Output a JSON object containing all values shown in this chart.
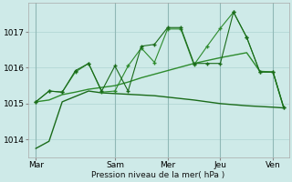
{
  "bg_color": "#ceeae8",
  "grid_color": "#aed4d2",
  "line_dark": "#1a6b1a",
  "line_mid": "#2d8b2d",
  "xlabel": "Pression niveau de la mer( hPa )",
  "ylim": [
    1013.5,
    1017.8
  ],
  "xlim": [
    -0.3,
    9.6
  ],
  "xtick_labels": [
    "Mar",
    "Sam",
    "Mer",
    "Jeu",
    "Ven"
  ],
  "xtick_positions": [
    0,
    3,
    5,
    7,
    9
  ],
  "ytick_vals": [
    1014,
    1015,
    1016,
    1017
  ],
  "s1_x": [
    0,
    0.5,
    1.0,
    1.5,
    2.0,
    2.5,
    3.0,
    3.5,
    4.0,
    4.5,
    5.0,
    5.5,
    6.0,
    6.5,
    7.0,
    7.5,
    8.0,
    8.5,
    9.0,
    9.4
  ],
  "s1_y": [
    1013.75,
    1013.95,
    1015.05,
    1015.2,
    1015.35,
    1015.3,
    1015.28,
    1015.26,
    1015.24,
    1015.22,
    1015.18,
    1015.14,
    1015.1,
    1015.05,
    1015.0,
    1014.97,
    1014.94,
    1014.92,
    1014.9,
    1014.88
  ],
  "s2_x": [
    0,
    0.5,
    1.0,
    1.5,
    2.0,
    2.5,
    3.0,
    3.5,
    4.0,
    4.5,
    5.0,
    5.5,
    6.0,
    6.5,
    7.0,
    7.5,
    8.0,
    8.5,
    9.0,
    9.4
  ],
  "s2_y": [
    1015.05,
    1015.1,
    1015.25,
    1015.32,
    1015.4,
    1015.45,
    1015.5,
    1015.6,
    1015.72,
    1015.82,
    1015.92,
    1016.02,
    1016.12,
    1016.2,
    1016.28,
    1016.35,
    1016.42,
    1015.9,
    1015.88,
    1014.9
  ],
  "s3_x": [
    0,
    0.5,
    1.0,
    1.5,
    2.0,
    2.5,
    3.0,
    3.5,
    4.0,
    4.5,
    5.0,
    5.5,
    6.0,
    6.5,
    7.0,
    7.5,
    8.0,
    8.5,
    9.0,
    9.4
  ],
  "s3_y": [
    1015.05,
    1015.35,
    1015.32,
    1015.88,
    1016.12,
    1015.32,
    1015.35,
    1016.05,
    1016.55,
    1016.15,
    1017.08,
    1017.08,
    1016.08,
    1016.6,
    1017.1,
    1017.55,
    1016.85,
    1015.88,
    1015.88,
    1014.9
  ],
  "s4_x": [
    0,
    0.5,
    1.0,
    1.5,
    2.0,
    2.5,
    3.0,
    3.5,
    4.0,
    4.5,
    5.0,
    5.5,
    6.0,
    6.5,
    7.0,
    7.5,
    8.0,
    8.5,
    9.0,
    9.4
  ],
  "s4_y": [
    1015.05,
    1015.35,
    1015.32,
    1015.92,
    1016.12,
    1015.35,
    1016.05,
    1015.35,
    1016.6,
    1016.65,
    1017.12,
    1017.12,
    1016.12,
    1016.12,
    1016.12,
    1017.55,
    1016.85,
    1015.88,
    1015.88,
    1014.9
  ]
}
